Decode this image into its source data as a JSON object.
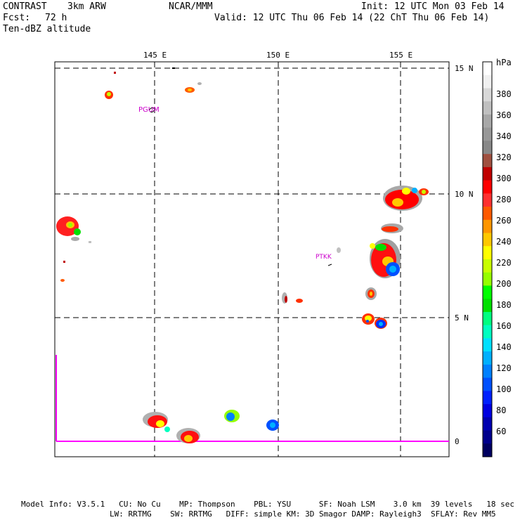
{
  "header": {
    "model": "CONTRAST",
    "resolution": "3km ARW",
    "center": "NCAR/MMM",
    "init": "Init: 12 UTC Mon 03 Feb 14",
    "fcst_label": "Fcst:",
    "fcst_value": "72 h",
    "valid": "Valid: 12 UTC Thu 06 Feb 14 (22 ChT Thu 06 Feb 14)",
    "field": "Ten-dBZ altitude"
  },
  "map": {
    "lon_labels": [
      "145 E",
      "150 E",
      "155 E"
    ],
    "lat_labels": [
      "15 N",
      "10 N",
      "5 N",
      "0"
    ],
    "stations": [
      "PGUM",
      "PTKK"
    ]
  },
  "colorbar": {
    "unit": "hPa",
    "labels": [
      "380",
      "360",
      "340",
      "320",
      "300",
      "280",
      "260",
      "240",
      "220",
      "200",
      "180",
      "160",
      "140",
      "120",
      "100",
      "80",
      "60"
    ],
    "colors": [
      "#ffffff",
      "#f0f0f0",
      "#d8d8d8",
      "#c0c0c0",
      "#a8a8a8",
      "#989898",
      "#888888",
      "#a05040",
      "#c00000",
      "#ff0000",
      "#ff3030",
      "#ff5a00",
      "#ff9600",
      "#ffc800",
      "#ffff00",
      "#c8ff00",
      "#96ff00",
      "#00ff00",
      "#00e000",
      "#00ff80",
      "#00ffc0",
      "#00e0ff",
      "#00b0ff",
      "#0080ff",
      "#0050ff",
      "#0020ff",
      "#0000e0",
      "#0000b0",
      "#00008c",
      "#000060"
    ]
  },
  "footer": {
    "line1": "Model Info: V3.5.1   CU: No Cu    MP: Thompson    PBL: YSU      SF: Noah LSM    3.0 km  39 levels   18 sec",
    "line2": "LW: RRTMG    SW: RRTMG   DIFF: simple KM: 3D Smagor DAMP: Rayleigh3  SFLAY: Rev MM5"
  }
}
